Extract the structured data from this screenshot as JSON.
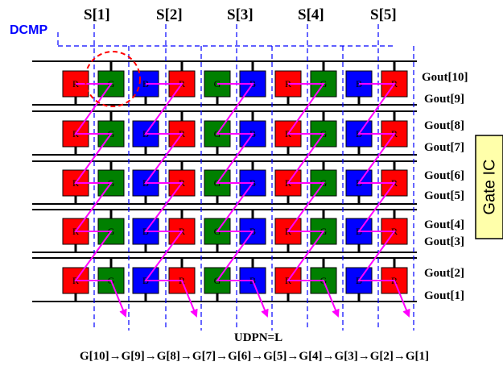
{
  "dcmp_label": "DCMP",
  "source_labels": [
    "S[1]",
    "S[2]",
    "S[3]",
    "S[4]",
    "S[5]"
  ],
  "gate_labels": [
    "Gout[10]",
    "Gout[9]",
    "Gout[8]",
    "Gout[7]",
    "Gout[6]",
    "Gout[5]",
    "Gout[4]",
    "Gout[3]",
    "Gout[2]",
    "Gout[1]"
  ],
  "gate_ic_label": "Gate IC",
  "udpn_label": "UDPN=L",
  "scan_sequence": "G[10]→G[9]→G[8]→G[7]→G[6]→G[5]→G[4]→G[3]→G[2]→G[1]",
  "rows": [
    [
      "R",
      "G",
      "B",
      "R",
      "G",
      "B",
      "R",
      "G",
      "B",
      "R"
    ],
    [
      "R",
      "G",
      "B",
      "R",
      "G",
      "B",
      "R",
      "G",
      "B",
      "R"
    ],
    [
      "R",
      "G",
      "B",
      "R",
      "G",
      "B",
      "R",
      "G",
      "B",
      "R"
    ],
    [
      "R",
      "G",
      "B",
      "R",
      "G",
      "B",
      "R",
      "G",
      "B",
      "R"
    ],
    [
      "R",
      "G",
      "B",
      "R",
      "G",
      "B",
      "R",
      "G",
      "B",
      "R"
    ]
  ],
  "colors": {
    "R": "#ff0000",
    "G": "#008000",
    "B": "#0000ff",
    "dash_line": "#0000ff",
    "arrow": "#ff00ff",
    "highlight_circle": "#ff0000",
    "gate_ic_fill": "#ffffaa"
  }
}
